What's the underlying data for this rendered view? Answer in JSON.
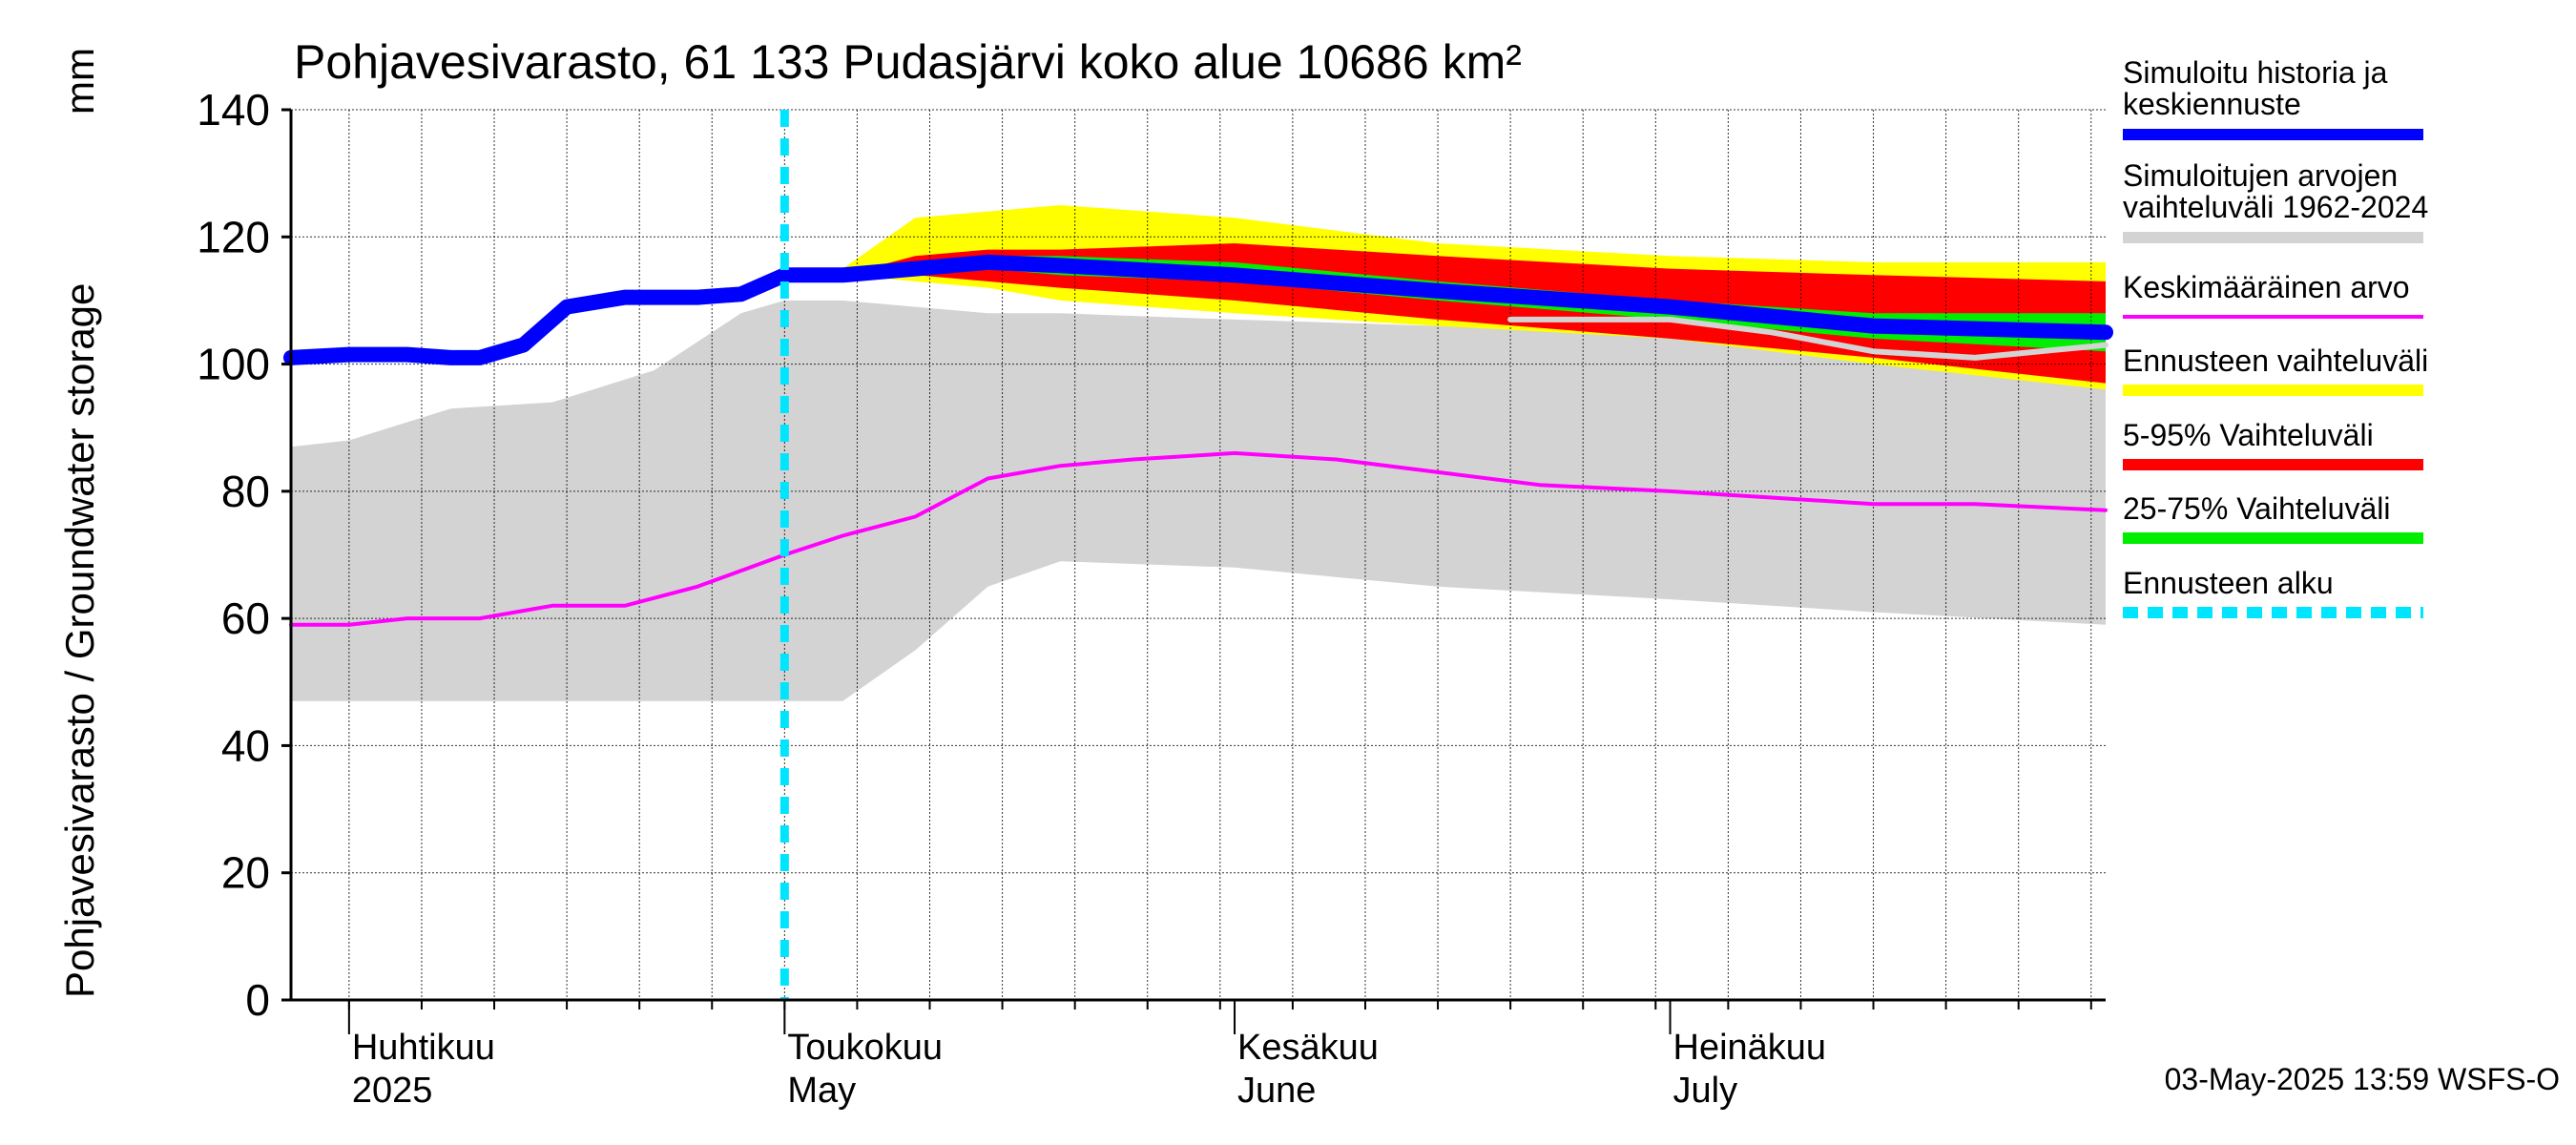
{
  "chart_data": {
    "type": "area",
    "title": "Pohjavesivarasto, 61 133 Pudasjärvi koko alue 10686 km²",
    "ylabel": "Pohjavesivarasto / Groundwater storage",
    "yunit": "mm",
    "ylim": [
      0,
      140
    ],
    "yticks": [
      "0",
      "20",
      "40",
      "60",
      "80",
      "100",
      "120",
      "140"
    ],
    "xlim": [
      "2025-03-28",
      "2025-07-31"
    ],
    "grid": true,
    "legend_position": "right",
    "footer": "03-May-2025 13:59 WSFS-O",
    "month_labels": [
      {
        "fi": "Huhtikuu",
        "en": "2025",
        "date": "2025-04-01"
      },
      {
        "fi": "Toukokuu",
        "en": "May",
        "date": "2025-05-01"
      },
      {
        "fi": "Kesäkuu",
        "en": "June",
        "date": "2025-06-01"
      },
      {
        "fi": "Heinäkuu",
        "en": "July",
        "date": "2025-07-01"
      }
    ],
    "forecast_start": "2025-05-01",
    "legend": [
      {
        "label": "Simuloitu historia ja keskiennuste",
        "color": "#0000ff",
        "style": "thick"
      },
      {
        "label": "Simuloitujen arvojen vaihteluväli 1962-2024",
        "color": "#d3d3d3",
        "style": "thick"
      },
      {
        "label": "Keskimääräinen arvo",
        "color": "#ff00ff",
        "style": "thin"
      },
      {
        "label": "Ennusteen vaihteluväli",
        "color": "#ffff00",
        "style": "thick"
      },
      {
        "label": "5-95% Vaihteluväli",
        "color": "#ff0000",
        "style": "thick"
      },
      {
        "label": "25-75% Vaihteluväli",
        "color": "#00ee00",
        "style": "thick"
      },
      {
        "label": "Ennusteen alku",
        "color": "#00e5ff",
        "style": "dashed"
      }
    ],
    "series": [
      {
        "name": "Simuloitujen arvojen vaihteluväli 1962-2024",
        "kind": "band",
        "color": "#d3d3d3",
        "x": [
          "2025-03-28",
          "2025-04-01",
          "2025-04-08",
          "2025-04-15",
          "2025-04-22",
          "2025-04-28",
          "2025-05-01",
          "2025-05-05",
          "2025-05-10",
          "2025-05-15",
          "2025-05-20",
          "2025-06-01",
          "2025-06-15",
          "2025-07-01",
          "2025-07-15",
          "2025-07-31"
        ],
        "upper": [
          87,
          88,
          93,
          94,
          99,
          108,
          110,
          110,
          109,
          108,
          108,
          107,
          106,
          106,
          102,
          100
        ],
        "lower": [
          47,
          47,
          47,
          47,
          47,
          47,
          47,
          47,
          55,
          65,
          69,
          68,
          65,
          63,
          61,
          59
        ]
      },
      {
        "name": "Ennusteen vaihteluväli",
        "kind": "band",
        "color": "#ffff00",
        "x": [
          "2025-05-01",
          "2025-05-05",
          "2025-05-10",
          "2025-05-15",
          "2025-05-20",
          "2025-06-01",
          "2025-06-15",
          "2025-07-01",
          "2025-07-15",
          "2025-07-31"
        ],
        "upper": [
          114,
          115,
          123,
          124,
          125,
          123,
          119,
          117,
          116,
          116
        ],
        "lower": [
          114,
          114,
          113,
          112,
          110,
          108,
          106,
          104,
          100,
          96
        ]
      },
      {
        "name": "5-95% Vaihteluväli",
        "kind": "band",
        "color": "#ff0000",
        "x": [
          "2025-05-01",
          "2025-05-05",
          "2025-05-10",
          "2025-05-15",
          "2025-05-20",
          "2025-06-01",
          "2025-06-15",
          "2025-07-01",
          "2025-07-15",
          "2025-07-31"
        ],
        "upper": [
          114,
          114,
          117,
          118,
          118,
          119,
          117,
          115,
          114,
          113
        ],
        "lower": [
          114,
          114,
          114,
          113,
          112,
          110,
          107,
          104,
          101,
          97
        ]
      },
      {
        "name": "25-75% Vaihteluväli",
        "kind": "band",
        "color": "#00ee00",
        "x": [
          "2025-05-01",
          "2025-05-05",
          "2025-05-10",
          "2025-05-15",
          "2025-05-20",
          "2025-06-01",
          "2025-06-15",
          "2025-07-01",
          "2025-07-15",
          "2025-07-31"
        ],
        "upper": [
          114,
          114,
          116,
          117,
          117,
          116,
          113,
          110,
          108,
          108
        ],
        "lower": [
          114,
          114,
          115,
          115,
          114,
          113,
          110,
          107,
          104,
          102
        ]
      },
      {
        "name": "Keskimääräinen arvo",
        "kind": "line",
        "color": "#ff00ff",
        "x": [
          "2025-03-28",
          "2025-04-01",
          "2025-04-05",
          "2025-04-10",
          "2025-04-15",
          "2025-04-20",
          "2025-04-25",
          "2025-05-01",
          "2025-05-05",
          "2025-05-10",
          "2025-05-15",
          "2025-05-20",
          "2025-05-25",
          "2025-06-01",
          "2025-06-08",
          "2025-06-15",
          "2025-06-22",
          "2025-07-01",
          "2025-07-08",
          "2025-07-15",
          "2025-07-22",
          "2025-07-31"
        ],
        "y": [
          59,
          59,
          60,
          60,
          62,
          62,
          65,
          70,
          73,
          76,
          82,
          84,
          85,
          86,
          85,
          83,
          81,
          80,
          79,
          78,
          78,
          77
        ]
      },
      {
        "name": "Simuloitu historia ja keskiennuste",
        "kind": "line",
        "color": "#0000ff",
        "x": [
          "2025-03-28",
          "2025-04-01",
          "2025-04-05",
          "2025-04-08",
          "2025-04-10",
          "2025-04-13",
          "2025-04-16",
          "2025-04-20",
          "2025-04-25",
          "2025-04-28",
          "2025-05-01",
          "2025-05-05",
          "2025-05-10",
          "2025-05-15",
          "2025-05-20",
          "2025-06-01",
          "2025-06-15",
          "2025-07-01",
          "2025-07-15",
          "2025-07-31"
        ],
        "y": [
          101,
          101.5,
          101.5,
          101,
          101,
          103,
          109,
          110.5,
          110.5,
          111,
          114,
          114,
          115,
          116,
          115.5,
          114,
          111.5,
          109,
          106,
          105
        ]
      },
      {
        "name": "Simuloitu historia ja keskiennuste (mediaani)",
        "kind": "line",
        "color": "#d3d3d3",
        "x": [
          "2025-06-20",
          "2025-07-01",
          "2025-07-08",
          "2025-07-15",
          "2025-07-22",
          "2025-07-31"
        ],
        "y": [
          107,
          107,
          105,
          102,
          101,
          103
        ]
      }
    ]
  }
}
